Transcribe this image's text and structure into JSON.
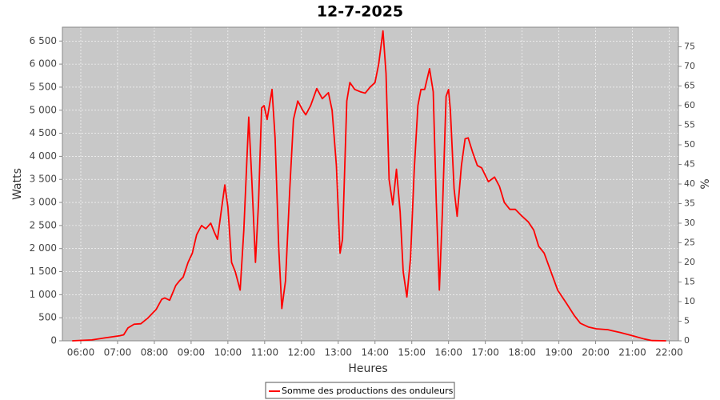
{
  "chart_data": {
    "type": "line",
    "title": "12-7-2025",
    "x_label": "Heures",
    "y_label": "Watts",
    "y2_label": "%",
    "grid": true,
    "xlim": [
      "05:30",
      "22:15"
    ],
    "xticks": [
      "06:00",
      "07:00",
      "08:00",
      "09:00",
      "10:00",
      "11:00",
      "12:00",
      "13:00",
      "14:00",
      "15:00",
      "16:00",
      "17:00",
      "18:00",
      "19:00",
      "20:00",
      "21:00",
      "22:00"
    ],
    "ylim": [
      0,
      6800
    ],
    "yticks": [
      0,
      500,
      {
        "value": 1000,
        "label": "1 000"
      },
      {
        "value": 1500,
        "label": "1 500"
      },
      {
        "value": 2000,
        "label": "2 000"
      },
      {
        "value": 2500,
        "label": "2 500"
      },
      {
        "value": 3000,
        "label": "3 000"
      },
      {
        "value": 3500,
        "label": "3 500"
      },
      {
        "value": 4000,
        "label": "4 000"
      },
      {
        "value": 4500,
        "label": "4 500"
      },
      {
        "value": 5000,
        "label": "5 000"
      },
      {
        "value": 5500,
        "label": "5 500"
      },
      {
        "value": 6000,
        "label": "6 000"
      },
      {
        "value": 6500,
        "label": "6 500"
      }
    ],
    "y2lim": [
      0,
      80
    ],
    "y2ticks": [
      0,
      5,
      10,
      15,
      20,
      25,
      30,
      35,
      40,
      45,
      50,
      55,
      60,
      65,
      70,
      75
    ],
    "x": [
      "05:46",
      "06:18",
      "06:38",
      "07:04",
      "07:10",
      "07:17",
      "07:27",
      "07:38",
      "07:50",
      "08:03",
      "08:12",
      "08:17",
      "08:25",
      "08:35",
      "08:41",
      "08:47",
      "08:55",
      "09:02",
      "09:09",
      "09:17",
      "09:24",
      "09:32",
      "09:38",
      "09:43",
      "09:49",
      "09:55",
      "10:00",
      "10:06",
      "10:12",
      "10:20",
      "10:26",
      "10:34",
      "10:39",
      "10:45",
      "10:50",
      "10:55",
      "10:59",
      "11:04",
      "11:12",
      "11:17",
      "11:23",
      "11:28",
      "11:34",
      "11:41",
      "11:47",
      "11:54",
      "12:02",
      "12:07",
      "12:15",
      "12:25",
      "12:34",
      "12:44",
      "12:50",
      "12:57",
      "13:03",
      "13:07",
      "13:14",
      "13:19",
      "13:27",
      "13:36",
      "13:44",
      "13:52",
      "14:00",
      "14:06",
      "14:13",
      "14:18",
      "14:23",
      "14:29",
      "14:35",
      "14:41",
      "14:46",
      "14:52",
      "14:58",
      "15:04",
      "15:10",
      "15:15",
      "15:21",
      "15:29",
      "15:35",
      "15:40",
      "15:45",
      "15:50",
      "15:56",
      "16:00",
      "16:03",
      "16:09",
      "16:14",
      "16:21",
      "16:27",
      "16:32",
      "16:39",
      "16:47",
      "16:54",
      "17:05",
      "17:15",
      "17:23",
      "17:31",
      "17:40",
      "17:49",
      "18:00",
      "18:10",
      "18:19",
      "18:27",
      "18:36",
      "18:47",
      "18:58",
      "19:13",
      "19:25",
      "19:35",
      "19:48",
      "20:01",
      "20:20",
      "20:40",
      "21:00",
      "21:19",
      "21:32",
      "21:55"
    ],
    "series": [
      {
        "name": "Somme des productions des onduleurs",
        "color": "#ff0000",
        "values": [
          0,
          20,
          60,
          110,
          130,
          280,
          360,
          370,
          500,
          680,
          900,
          930,
          880,
          1200,
          1300,
          1380,
          1700,
          1900,
          2300,
          2500,
          2430,
          2550,
          2350,
          2200,
          2800,
          3380,
          2900,
          1700,
          1500,
          1100,
          2400,
          4850,
          3500,
          1700,
          3000,
          5050,
          5100,
          4800,
          5450,
          4400,
          2000,
          700,
          1300,
          3300,
          4800,
          5200,
          5000,
          4900,
          5100,
          5470,
          5250,
          5380,
          5000,
          3800,
          1900,
          2200,
          5200,
          5600,
          5450,
          5400,
          5370,
          5500,
          5600,
          6000,
          6720,
          5800,
          3500,
          2950,
          3720,
          2800,
          1500,
          950,
          1800,
          3700,
          5100,
          5450,
          5450,
          5900,
          5400,
          3000,
          1100,
          2800,
          5300,
          5450,
          5000,
          3300,
          2700,
          3800,
          4380,
          4400,
          4100,
          3800,
          3750,
          3450,
          3550,
          3350,
          3000,
          2850,
          2850,
          2700,
          2580,
          2400,
          2050,
          1900,
          1500,
          1100,
          800,
          550,
          380,
          300,
          260,
          240,
          180,
          110,
          40,
          5,
          0
        ]
      }
    ]
  }
}
